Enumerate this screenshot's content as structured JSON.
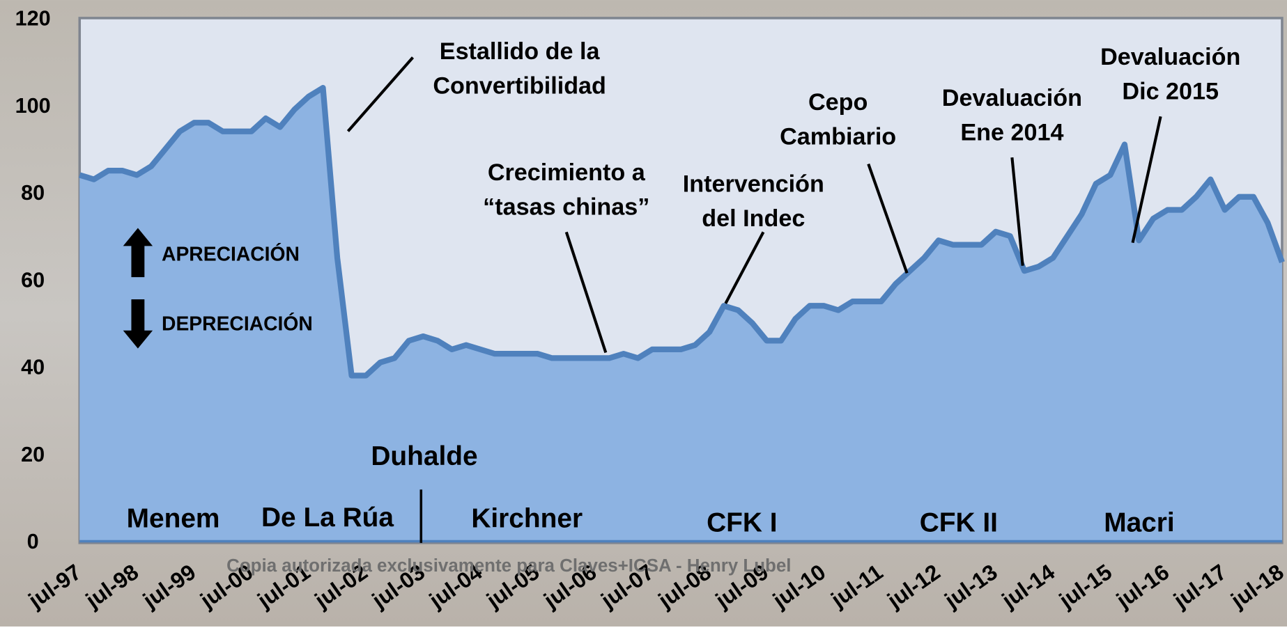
{
  "chart_data": {
    "type": "area",
    "categories": [
      "jul-97",
      null,
      null,
      null,
      "jul-98",
      null,
      null,
      null,
      "jul-99",
      null,
      null,
      null,
      "jul-00",
      null,
      null,
      null,
      "jul-01",
      null,
      null,
      null,
      "jul-02",
      null,
      null,
      null,
      "jul-03",
      null,
      null,
      null,
      "jul-04",
      null,
      null,
      null,
      "jul-05",
      null,
      null,
      null,
      "jul-06",
      null,
      null,
      null,
      "jul-07",
      null,
      null,
      null,
      "jul-08",
      null,
      null,
      null,
      "jul-09",
      null,
      null,
      null,
      "jul-10",
      null,
      null,
      null,
      "jul-11",
      null,
      null,
      null,
      "jul-12",
      null,
      null,
      null,
      "jul-13",
      null,
      null,
      null,
      "jul-14",
      null,
      null,
      null,
      "jul-15",
      null,
      null,
      null,
      "jul-16",
      null,
      null,
      null,
      "jul-17",
      null,
      null,
      null,
      "jul-18"
    ],
    "values": [
      84,
      83,
      85,
      85,
      84,
      86,
      90,
      94,
      96,
      96,
      94,
      94,
      94,
      97,
      95,
      99,
      102,
      104,
      65,
      38,
      38,
      41,
      42,
      46,
      47,
      46,
      44,
      45,
      44,
      43,
      43,
      43,
      43,
      42,
      42,
      42,
      42,
      42,
      43,
      42,
      44,
      44,
      44,
      45,
      48,
      54,
      53,
      50,
      46,
      46,
      51,
      54,
      54,
      53,
      55,
      55,
      55,
      59,
      62,
      65,
      69,
      68,
      68,
      68,
      71,
      70,
      62,
      63,
      65,
      70,
      75,
      82,
      84,
      91,
      69,
      74,
      76,
      76,
      79,
      83,
      76,
      79,
      79,
      73,
      64
    ],
    "color": "#8db3e2",
    "line_color": "#4f81bd",
    "ylim": [
      0,
      120
    ],
    "yticks": [
      0,
      20,
      40,
      60,
      80,
      100,
      120
    ],
    "annotations": [
      [
        "Estallido de la",
        "Convertibilidad"
      ],
      [
        "Crecimiento a",
        "“tasas chinas”"
      ],
      [
        "Intervención",
        "del Indec"
      ],
      [
        "Cepo",
        "Cambiario"
      ],
      [
        "Devaluación",
        "Ene 2014"
      ],
      [
        "Devaluación",
        "Dic 2015"
      ]
    ],
    "periods": [
      "Menem",
      "De La Rúa",
      "Duhalde",
      "Kirchner",
      "CFK I",
      "CFK II",
      "Macri"
    ],
    "legend": [
      "APRECIACIÓN",
      "DEPRECIACIÓN"
    ],
    "watermark": "Copia autorizada exclusivamente para Claves+ICSA - Henry Lubel"
  }
}
